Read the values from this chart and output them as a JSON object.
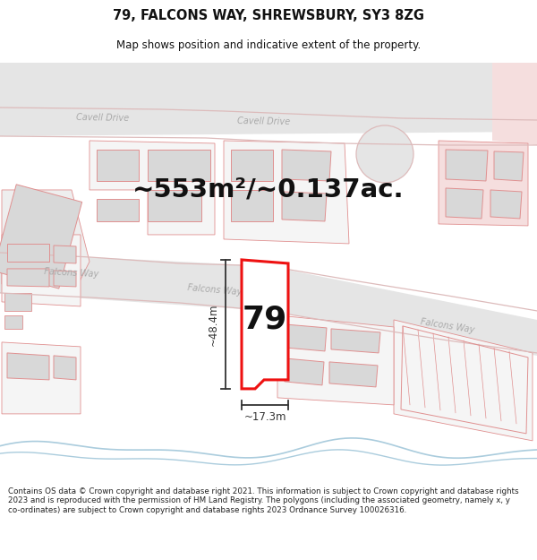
{
  "title_line1": "79, FALCONS WAY, SHREWSBURY, SY3 8ZG",
  "title_line2": "Map shows position and indicative extent of the property.",
  "area_text": "~553m²/~0.137ac.",
  "plot_number": "79",
  "dim_vertical": "~48.4m",
  "dim_horizontal": "~17.3m",
  "footer_text": "Contains OS data © Crown copyright and database right 2021. This information is subject to Crown copyright and database rights 2023 and is reproduced with the permission of HM Land Registry. The polygons (including the associated geometry, namely x, y co-ordinates) are subject to Crown copyright and database rights 2023 Ordnance Survey 100026316.",
  "bg_color": "#ffffff",
  "map_bg": "#ffffff",
  "road_fill": "#e8e8e8",
  "building_fill": "#d8d8d8",
  "building_edge": "#e09090",
  "plot_fill": "#ffffff",
  "highlight_edge": "#ee1111",
  "road_label_color": "#aaaaaa",
  "pink_fill": "#f5dede",
  "text_color": "#111111",
  "footer_color": "#222222",
  "dim_line_color": "#333333"
}
